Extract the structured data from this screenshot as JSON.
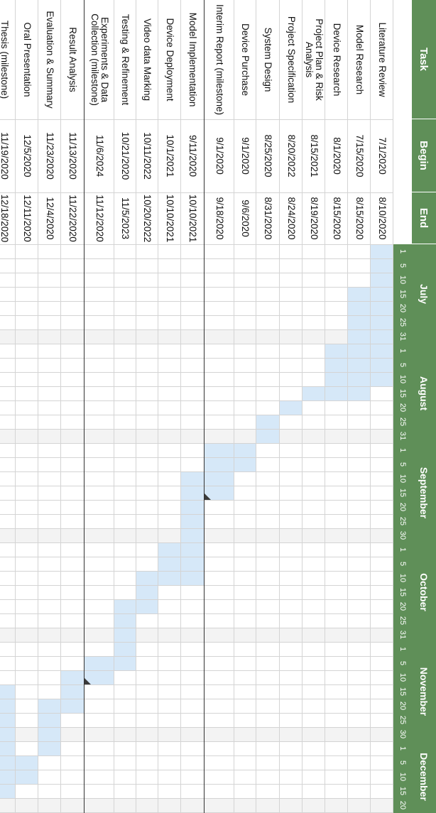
{
  "header": {
    "task_label": "Task",
    "begin_label": "Begin",
    "end_label": "End"
  },
  "timeline": {
    "months": [
      {
        "name": "July",
        "days": [
          "1",
          "5",
          "10",
          "15",
          "20",
          "25",
          "31"
        ]
      },
      {
        "name": "August",
        "days": [
          "1",
          "5",
          "10",
          "15",
          "20",
          "25",
          "31"
        ]
      },
      {
        "name": "September",
        "days": [
          "1",
          "5",
          "10",
          "15",
          "20",
          "25",
          "30"
        ]
      },
      {
        "name": "October",
        "days": [
          "1",
          "5",
          "10",
          "15",
          "20",
          "25",
          "31"
        ]
      },
      {
        "name": "November",
        "days": [
          "1",
          "5",
          "10",
          "15",
          "20",
          "25",
          "30"
        ]
      },
      {
        "name": "December",
        "days": [
          "1",
          "5",
          "10",
          "15",
          "20"
        ]
      }
    ]
  },
  "tasks": [
    {
      "name": "Literature Review",
      "begin": "7/1/2020",
      "end": "8/10/2020",
      "milestone": false
    },
    {
      "name": "Model Research",
      "begin": "7/15/2020",
      "end": "8/15/2020",
      "milestone": false
    },
    {
      "name": "Device Research",
      "begin": "8/1/2020",
      "end": "8/15/2020",
      "milestone": false
    },
    {
      "name": "Project Plan & Risk Analysis",
      "begin": "8/15/2021",
      "end": "8/19/2020",
      "milestone": false
    },
    {
      "name": "Project Specification",
      "begin": "8/20/2022",
      "end": "8/24/2020",
      "milestone": false
    },
    {
      "name": "System Design",
      "begin": "8/25/2020",
      "end": "8/31/2020",
      "milestone": false
    },
    {
      "name": "Device Purchase",
      "begin": "9/1/2020",
      "end": "9/6/2020",
      "milestone": false
    },
    {
      "name": "Interim Report (milestone)",
      "begin": "9/1/2020",
      "end": "9/18/2020",
      "milestone": true
    },
    {
      "name": "Model Implementation",
      "begin": "9/11/2020",
      "end": "10/10/2021",
      "milestone": false
    },
    {
      "name": "Device Deployment",
      "begin": "10/1/2021",
      "end": "10/10/2021",
      "milestone": false
    },
    {
      "name": "Video data Marking",
      "begin": "10/11/2022",
      "end": "10/20/2022",
      "milestone": false
    },
    {
      "name": "Testing & Refinement",
      "begin": "10/21/2020",
      "end": "11/5/2023",
      "milestone": false
    },
    {
      "name": "Experiments & Data Collection (milestone)",
      "begin": "11/6/2024",
      "end": "11/12/2020",
      "milestone": true
    },
    {
      "name": "Result Analysis",
      "begin": "11/13/2020",
      "end": "11/22/2020",
      "milestone": false
    },
    {
      "name": "Evaluation & Summary",
      "begin": "11/23/2020",
      "end": "12/4/2020",
      "milestone": false
    },
    {
      "name": "Oral Presentation",
      "begin": "12/5/2020",
      "end": "12/11/2020",
      "milestone": false
    },
    {
      "name": "Thesis (milestone)",
      "begin": "11/19/2020",
      "end": "12/18/2020",
      "milestone": true
    }
  ],
  "colors": {
    "header_bg": "#5f8f58",
    "bar": "#d6e8f8",
    "grid": "#d4d4d4",
    "week_band": "#f3f3f3"
  }
}
